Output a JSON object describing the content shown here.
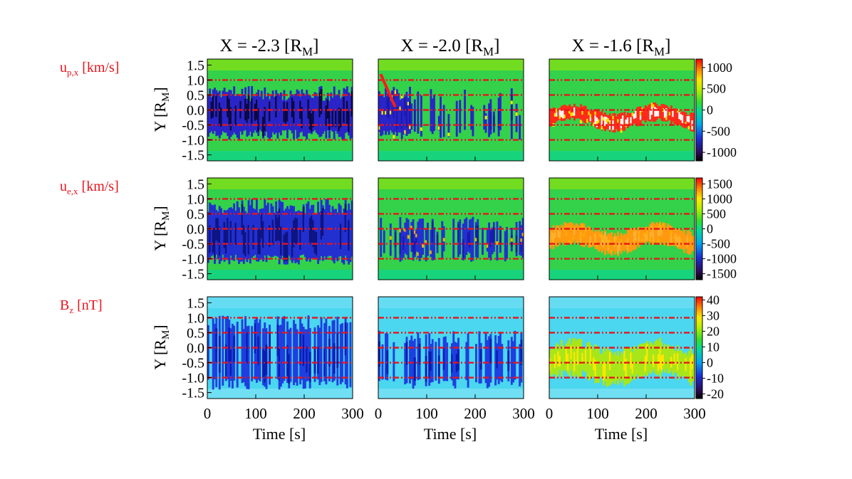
{
  "figure": {
    "column_titles": [
      {
        "main": "X = -2.3 [R",
        "sub": "M",
        "close": "]"
      },
      {
        "main": "X = -2.0 [R",
        "sub": "M",
        "close": "]"
      },
      {
        "main": "X = -1.6 [R",
        "sub": "M",
        "close": "]"
      }
    ],
    "row_labels": [
      {
        "main": "u",
        "sub": "p,x",
        "rest": " [km/s]"
      },
      {
        "main": "u",
        "sub": "e,x",
        "rest": " [km/s]"
      },
      {
        "main": "B",
        "sub": "z",
        "rest": " [nT]"
      }
    ],
    "ylabel": {
      "main": "Y [R",
      "sub": "M",
      "close": "]"
    },
    "xlabel": "Time [s]",
    "x_ticks": [
      "0",
      "100",
      "200",
      "300"
    ],
    "y_ticks": [
      "1.5",
      "1.0",
      "0.5",
      "0.0",
      "-0.5",
      "-1.0",
      "-1.5"
    ],
    "label_color": "#e8141c",
    "dashed_line_color": "#e8141c"
  },
  "chart_data": [
    {
      "type": "heatmap",
      "row": "u_p,x [km/s]",
      "colorbar": {
        "ticks": [
          "1000",
          "500",
          "0",
          "-500",
          "-1000"
        ],
        "range": [
          -1200,
          1200
        ]
      },
      "panels": [
        {
          "x_position": "X = -2.3 [R_M]",
          "xlim": [
            0,
            300
          ],
          "ylim": [
            -1.7,
            1.7
          ],
          "background": "green",
          "feature": "strong negative (blue/black) flow between Y = -1.0 and 0.8"
        },
        {
          "x_position": "X = -2.0 [R_M]",
          "xlim": [
            0,
            300
          ],
          "ylim": [
            -1.7,
            1.7
          ],
          "background": "green",
          "feature": "negative flow early (t < 60 s), mixed positive/negative later; red diagonal line from (5, 1.2) to (35, 0.1)"
        },
        {
          "x_position": "X = -1.6 [R_M]",
          "xlim": [
            0,
            300
          ],
          "ylim": [
            -1.7,
            1.7
          ],
          "background": "green",
          "feature": "strong positive (yellow/red/white) flow band near Y = -0.3 to 0.0"
        }
      ],
      "reference_lines_y": [
        1.0,
        0.5,
        0.0,
        -0.5,
        -1.0
      ]
    },
    {
      "type": "heatmap",
      "row": "u_e,x [km/s]",
      "colorbar": {
        "ticks": [
          "1500",
          "1000",
          "500",
          "0",
          "-500",
          "-1000",
          "-1500"
        ],
        "range": [
          -1700,
          1700
        ]
      },
      "panels": [
        {
          "x_position": "X = -2.3 [R_M]",
          "xlim": [
            0,
            300
          ],
          "ylim": [
            -1.7,
            1.7
          ],
          "background": "green",
          "feature": "strong negative (dark blue) flow between Y = -1.2 and 1.0"
        },
        {
          "x_position": "X = -2.0 [R_M]",
          "xlim": [
            0,
            300
          ],
          "ylim": [
            -1.7,
            1.7
          ],
          "background": "green",
          "feature": "negative flow with scattered positive patches"
        },
        {
          "x_position": "X = -1.6 [R_M]",
          "xlim": [
            0,
            300
          ],
          "ylim": [
            -1.7,
            1.7
          ],
          "background": "green",
          "feature": "positive (orange) flow band near Y = -0.5 to 0.0"
        }
      ],
      "reference_lines_y": [
        1.0,
        0.5,
        0.0,
        -0.5,
        -1.0
      ]
    },
    {
      "type": "heatmap",
      "row": "B_z [nT]",
      "colorbar": {
        "ticks": [
          "40",
          "30",
          "20",
          "10",
          "0",
          "-10",
          "-20"
        ],
        "range": [
          -23,
          42
        ]
      },
      "panels": [
        {
          "x_position": "X = -2.3 [R_M]",
          "xlim": [
            0,
            300
          ],
          "ylim": [
            -1.7,
            1.7
          ],
          "background": "light blue",
          "feature": "negative (blue) streaks across the sheet"
        },
        {
          "x_position": "X = -2.0 [R_M]",
          "xlim": [
            0,
            300
          ],
          "ylim": [
            -1.7,
            1.7
          ],
          "background": "light blue",
          "feature": "negative streaks with weak positive patches"
        },
        {
          "x_position": "X = -1.6 [R_M]",
          "xlim": [
            0,
            300
          ],
          "ylim": [
            -1.7,
            1.7
          ],
          "background": "light blue",
          "feature": "positive (green/yellow) patches near Y = -1.0 to 0.0"
        }
      ],
      "reference_lines_y": [
        1.0,
        0.5,
        0.0,
        -0.5,
        -1.0
      ]
    }
  ]
}
